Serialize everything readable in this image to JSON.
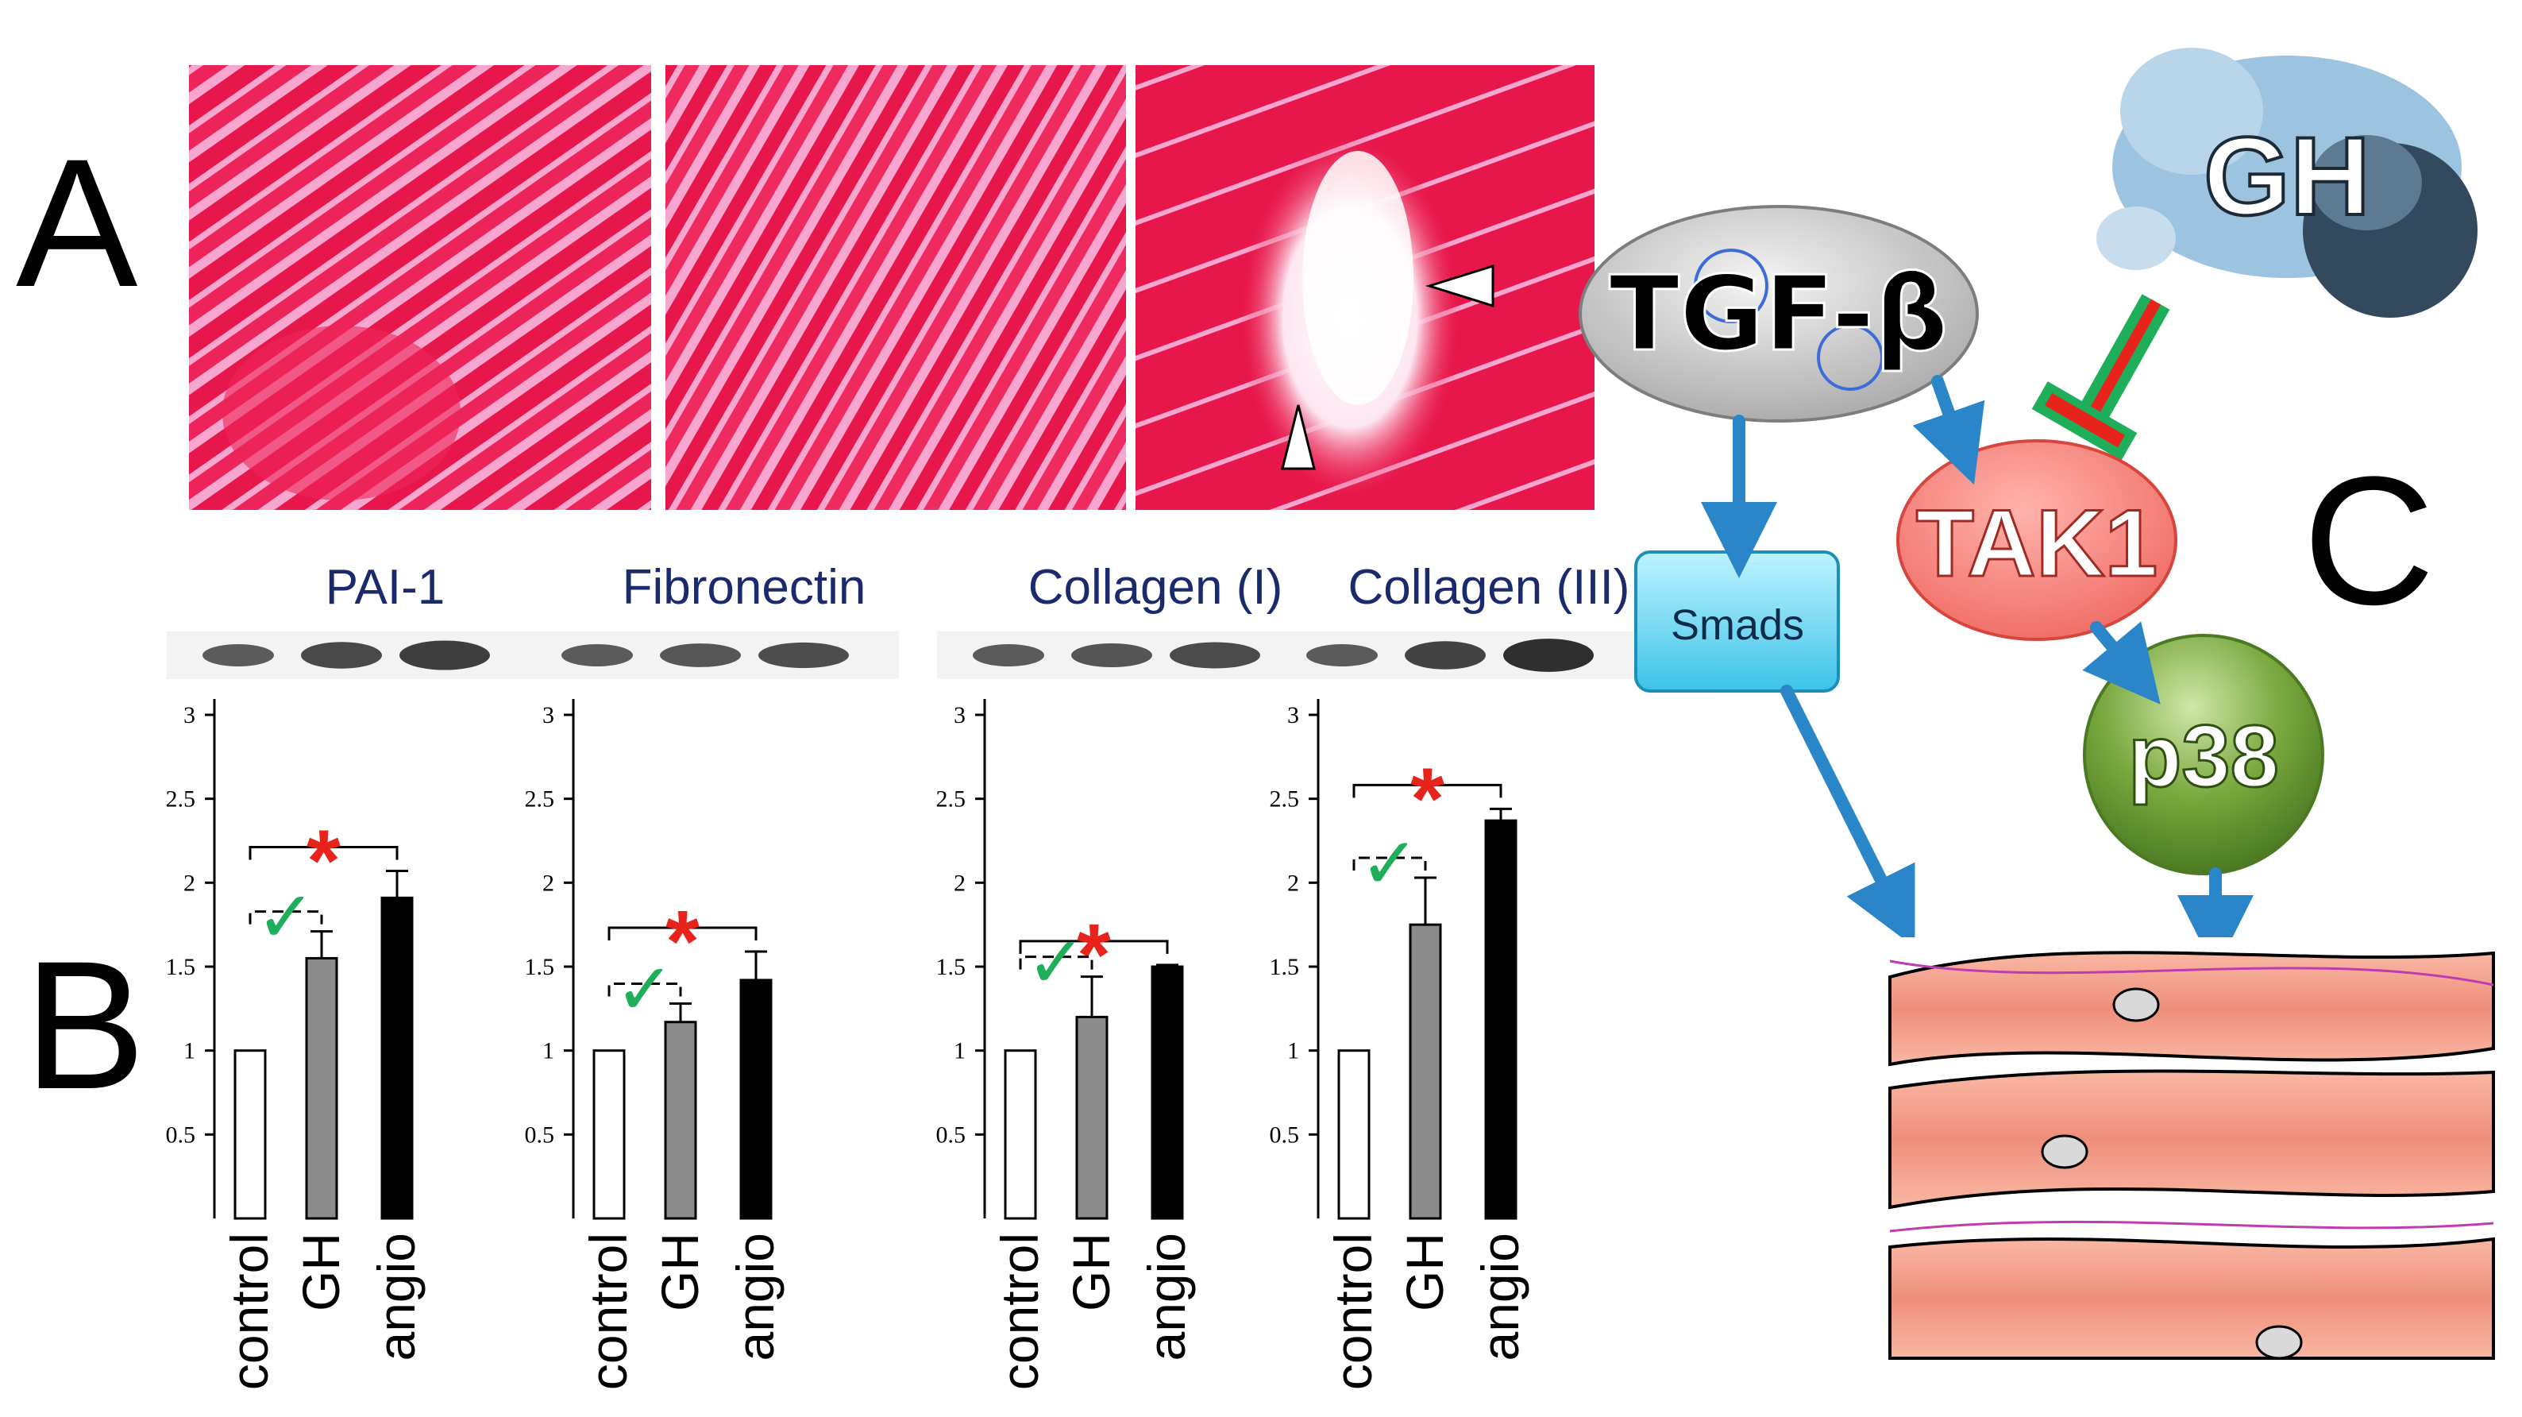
{
  "panels": {
    "a": {
      "letter": "A"
    },
    "b": {
      "letter": "B"
    },
    "c": {
      "letter": "C"
    }
  },
  "colors": {
    "control": "#ffffff",
    "gh": "#8c8c8c",
    "angio": "#000000",
    "significance_star": "#e8231b",
    "check_mark": "#1fae5a",
    "arrow": "#2a86c8",
    "histology": "#e8174b"
  },
  "icons": [
    "significance-star",
    "check-mark",
    "arrowhead-marker",
    "inhibition-bar",
    "protein-structure-image"
  ],
  "chart_data": [
    {
      "type": "bar",
      "title": "PAI-1",
      "categories": [
        "control",
        "GH",
        "angio"
      ],
      "values": [
        1.0,
        1.55,
        1.91
      ],
      "errors": [
        0,
        0.16,
        0.16
      ],
      "ylim": [
        0,
        3
      ],
      "yticks": [
        "3",
        "2.5",
        "2",
        "1.5",
        "1",
        "0.5"
      ],
      "annotations": {
        "star": "*",
        "check": "✓"
      }
    },
    {
      "type": "bar",
      "title": "Fibronectin",
      "categories": [
        "control",
        "GH",
        "angio"
      ],
      "values": [
        1.0,
        1.17,
        1.42
      ],
      "errors": [
        0,
        0.11,
        0.17
      ],
      "ylim": [
        0,
        3
      ],
      "yticks": [
        "3",
        "2.5",
        "2",
        "1.5",
        "1",
        "0.5"
      ],
      "annotations": {
        "star": "*",
        "check": "✓"
      }
    },
    {
      "type": "bar",
      "title": "Collagen (I)",
      "categories": [
        "control",
        "GH",
        "angio"
      ],
      "values": [
        1.0,
        1.2,
        1.5
      ],
      "errors": [
        0,
        0.24,
        0.01
      ],
      "ylim": [
        0,
        3
      ],
      "yticks": [
        "3",
        "2.5",
        "2",
        "1.5",
        "1",
        "0.5"
      ],
      "annotations": {
        "star": "*",
        "check": "✓"
      }
    },
    {
      "type": "bar",
      "title": "Collagen (III)",
      "categories": [
        "control",
        "GH",
        "angio"
      ],
      "values": [
        1.0,
        1.75,
        2.37
      ],
      "errors": [
        0,
        0.28,
        0.07
      ],
      "ylim": [
        0,
        3
      ],
      "yticks": [
        "3",
        "2.5",
        "2",
        "1.5",
        "1",
        "0.5"
      ],
      "annotations": {
        "star": "*",
        "check": "✓"
      }
    }
  ],
  "pathway": {
    "nodes": {
      "tgf": "TGF-β",
      "gh": "GH",
      "tak1": "TAK1",
      "smads": "Smads",
      "p38": "p38"
    }
  }
}
